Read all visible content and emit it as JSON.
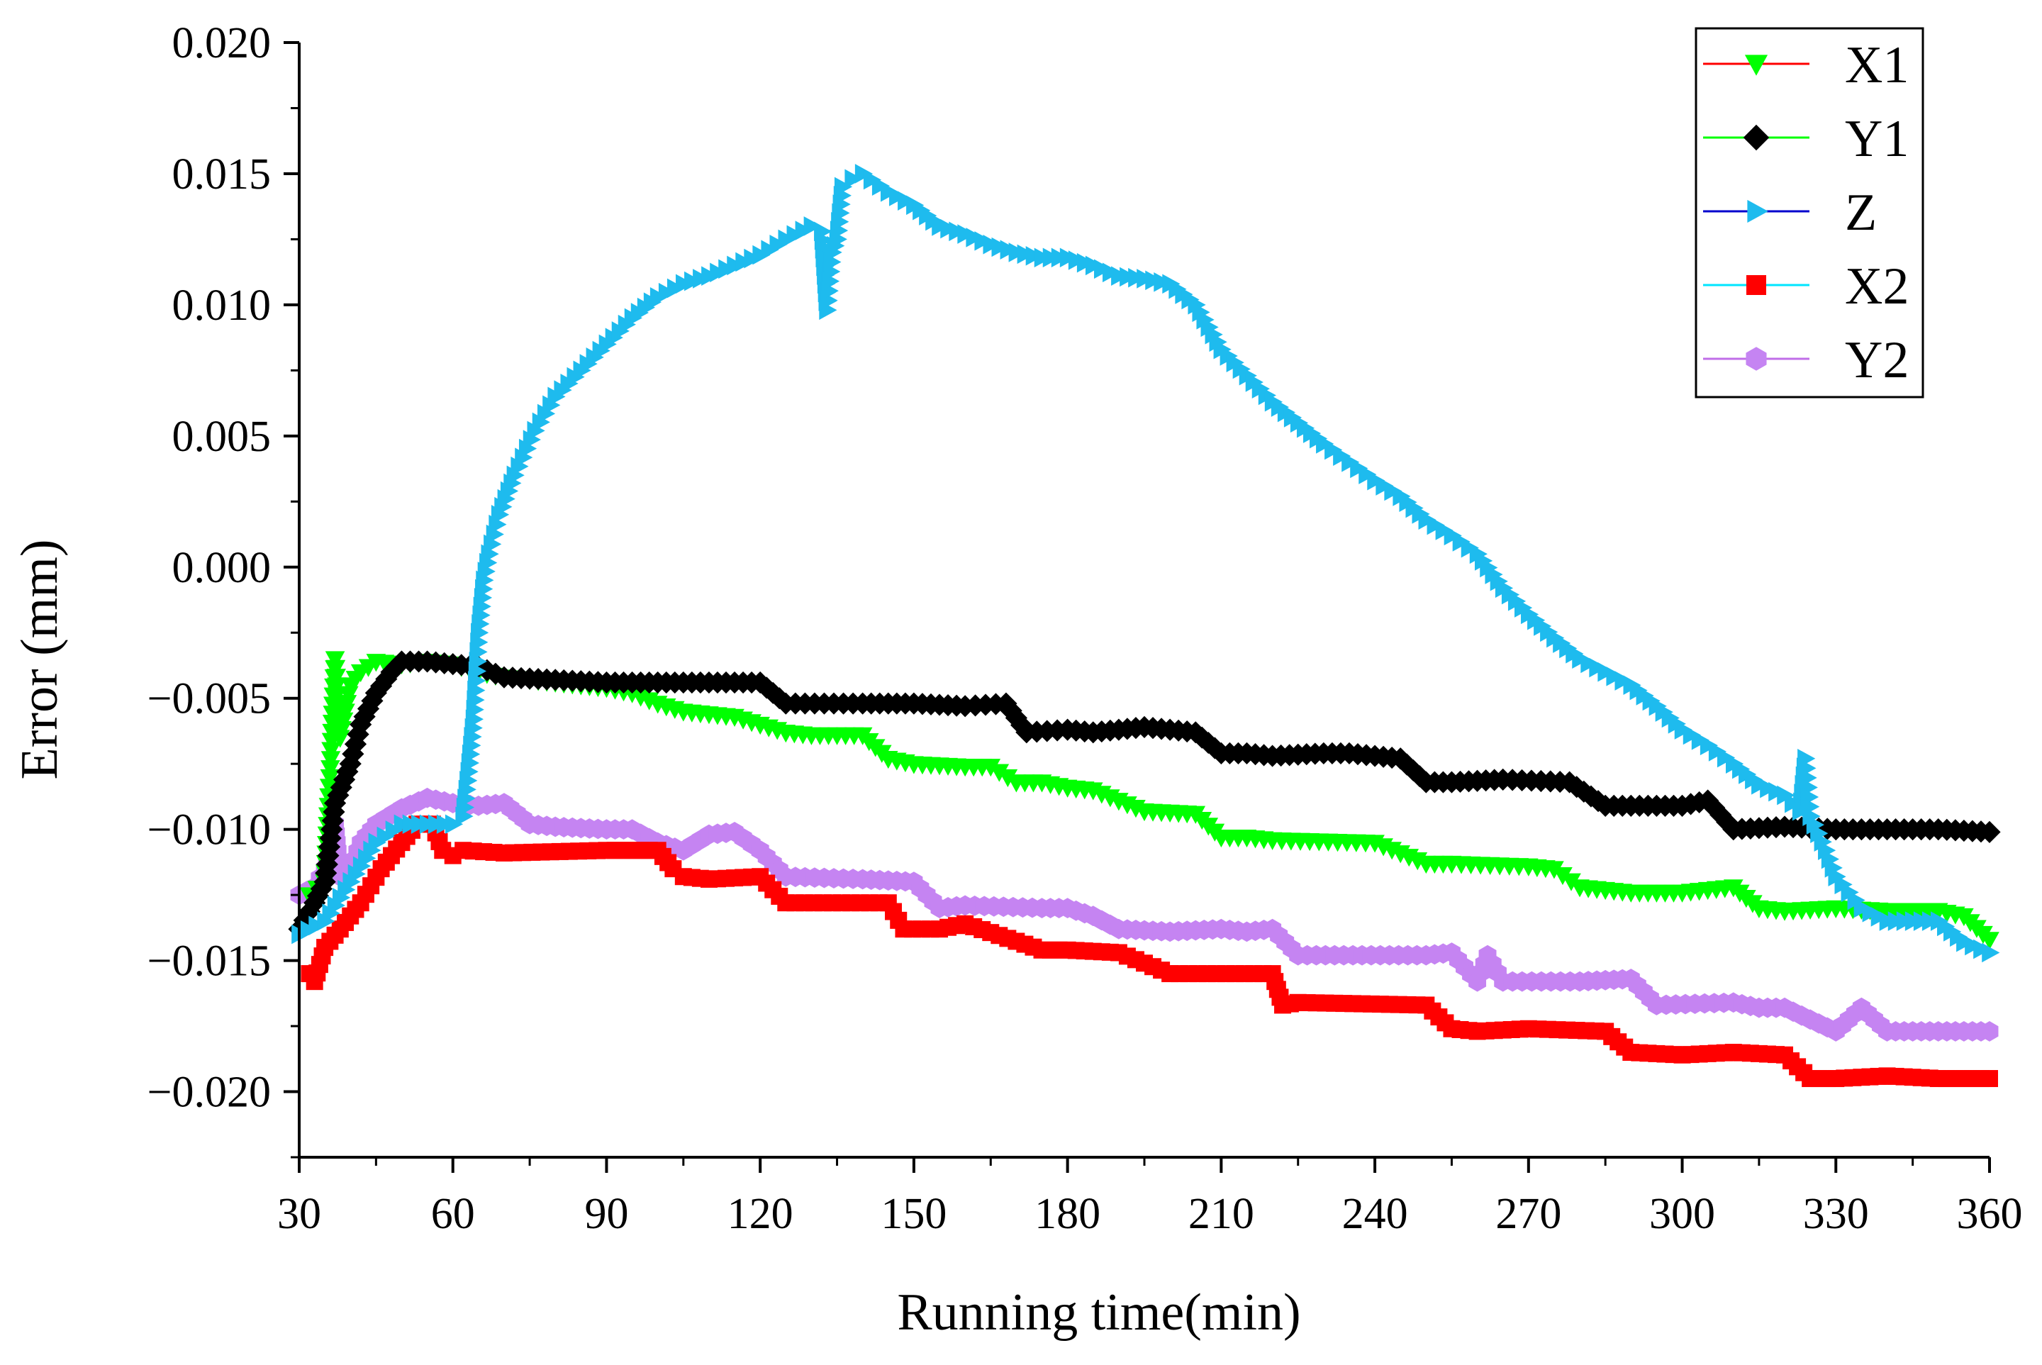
{
  "chart_data": {
    "type": "line",
    "title": "",
    "xlabel": "Running time(min)",
    "ylabel": "Error (mm)",
    "xlim": [
      30,
      360
    ],
    "ylim": [
      -0.0225,
      0.02
    ],
    "xticks": [
      30,
      60,
      90,
      120,
      150,
      180,
      210,
      240,
      270,
      300,
      330,
      360
    ],
    "xtick_labels": [
      "30",
      "60",
      "90",
      "120",
      "150",
      "180",
      "210",
      "240",
      "270",
      "300",
      "330",
      "360"
    ],
    "yticks": [
      -0.02,
      -0.015,
      -0.01,
      -0.005,
      0,
      0.005,
      0.01,
      0.015,
      0.02
    ],
    "ytick_labels": [
      "−0.020",
      "−0.015",
      "−0.010",
      "−0.005",
      "0.000",
      "0.005",
      "0.010",
      "0.015",
      "0.020"
    ],
    "legend_position": "top-right",
    "grid": false,
    "series": [
      {
        "name": "X1",
        "line_color": "#ff0000",
        "marker_color": "#00ff00",
        "marker": "triangle-down",
        "x": [
          32,
          35,
          36,
          37,
          38,
          40,
          42,
          45,
          50,
          55,
          60,
          65,
          70,
          75,
          80,
          90,
          95,
          100,
          105,
          110,
          115,
          120,
          125,
          130,
          140,
          145,
          150,
          160,
          165,
          170,
          175,
          180,
          185,
          195,
          205,
          210,
          215,
          220,
          240,
          250,
          255,
          270,
          275,
          280,
          290,
          300,
          310,
          315,
          320,
          330,
          340,
          350,
          355,
          360
        ],
        "values": [
          -0.0125,
          -0.012,
          -0.008,
          -0.0035,
          -0.0065,
          -0.0045,
          -0.004,
          -0.0036,
          -0.0037,
          -0.0036,
          -0.0037,
          -0.004,
          -0.0042,
          -0.0043,
          -0.0044,
          -0.0046,
          -0.0048,
          -0.0052,
          -0.0055,
          -0.0056,
          -0.0057,
          -0.006,
          -0.0063,
          -0.0064,
          -0.0064,
          -0.0073,
          -0.0075,
          -0.0076,
          -0.0076,
          -0.0082,
          -0.0082,
          -0.0084,
          -0.0085,
          -0.0093,
          -0.0094,
          -0.0103,
          -0.0103,
          -0.0104,
          -0.0105,
          -0.0113,
          -0.0113,
          -0.0114,
          -0.0115,
          -0.0122,
          -0.0124,
          -0.0124,
          -0.0122,
          -0.013,
          -0.0131,
          -0.013,
          -0.0131,
          -0.0131,
          -0.0133,
          -0.0142
        ]
      },
      {
        "name": "Y1",
        "line_color": "#00ff00",
        "marker_color": "#000000",
        "marker": "diamond",
        "x": [
          30,
          33,
          35,
          37,
          40,
          42,
          45,
          48,
          50,
          55,
          60,
          65,
          70,
          80,
          90,
          100,
          110,
          120,
          125,
          140,
          150,
          160,
          168,
          172,
          180,
          185,
          195,
          205,
          210,
          215,
          220,
          230,
          235,
          245,
          250,
          255,
          265,
          278,
          285,
          295,
          300,
          305,
          310,
          320,
          330,
          340,
          350,
          360
        ],
        "values": [
          -0.0138,
          -0.0128,
          -0.012,
          -0.009,
          -0.0075,
          -0.006,
          -0.0048,
          -0.004,
          -0.0036,
          -0.0036,
          -0.0037,
          -0.0038,
          -0.0042,
          -0.0043,
          -0.0044,
          -0.0044,
          -0.0044,
          -0.0044,
          -0.0052,
          -0.0052,
          -0.0052,
          -0.0053,
          -0.0052,
          -0.0063,
          -0.0062,
          -0.0063,
          -0.0061,
          -0.0063,
          -0.0071,
          -0.0071,
          -0.0072,
          -0.0071,
          -0.0071,
          -0.0073,
          -0.0082,
          -0.0082,
          -0.0081,
          -0.0082,
          -0.0091,
          -0.0091,
          -0.0091,
          -0.0089,
          -0.01,
          -0.0099,
          -0.01,
          -0.01,
          -0.01,
          -0.0101
        ]
      },
      {
        "name": "Z",
        "line_color": "#0000cd",
        "marker_color": "#1ebbee",
        "marker": "triangle-right",
        "x": [
          30,
          35,
          40,
          45,
          50,
          55,
          60,
          62,
          63,
          64,
          65,
          66,
          67,
          69,
          72,
          76,
          80,
          85,
          90,
          95,
          100,
          105,
          110,
          115,
          120,
          125,
          130,
          132,
          133,
          134,
          135,
          136,
          138,
          140,
          145,
          150,
          155,
          160,
          165,
          170,
          175,
          180,
          185,
          190,
          195,
          200,
          205,
          210,
          215,
          220,
          225,
          230,
          235,
          240,
          245,
          250,
          255,
          260,
          265,
          270,
          275,
          280,
          285,
          290,
          295,
          300,
          305,
          310,
          315,
          320,
          323,
          324,
          325,
          328,
          330,
          335,
          340,
          345,
          350,
          355,
          360
        ],
        "values": [
          -0.014,
          -0.0135,
          -0.012,
          -0.0105,
          -0.0098,
          -0.0098,
          -0.0098,
          -0.0095,
          -0.0078,
          -0.0058,
          -0.0025,
          -0.0005,
          0.0005,
          0.002,
          0.0035,
          0.0052,
          0.0065,
          0.0075,
          0.0085,
          0.0095,
          0.0103,
          0.0108,
          0.0111,
          0.0115,
          0.0119,
          0.0125,
          0.013,
          0.0128,
          0.0098,
          0.012,
          0.0125,
          0.0145,
          0.0148,
          0.015,
          0.0143,
          0.0138,
          0.013,
          0.0127,
          0.0123,
          0.012,
          0.0118,
          0.0118,
          0.0115,
          0.0111,
          0.011,
          0.0108,
          0.01,
          0.0083,
          0.0073,
          0.0063,
          0.0055,
          0.0047,
          0.004,
          0.0033,
          0.0027,
          0.0018,
          0.0012,
          0.0005,
          -0.0008,
          -0.0018,
          -0.0027,
          -0.0035,
          -0.004,
          -0.0045,
          -0.0053,
          -0.0062,
          -0.0068,
          -0.0075,
          -0.0083,
          -0.0087,
          -0.0093,
          -0.0073,
          -0.0095,
          -0.0108,
          -0.0118,
          -0.013,
          -0.0135,
          -0.0135,
          -0.0135,
          -0.0143,
          -0.0147
        ]
      },
      {
        "name": "X2",
        "line_color": "#00e5ff",
        "marker_color": "#ff0000",
        "marker": "square",
        "x": [
          32,
          33,
          35,
          38,
          42,
          46,
          50,
          53,
          56,
          58,
          60,
          62,
          70,
          90,
          100,
          103,
          105,
          110,
          120,
          125,
          145,
          148,
          155,
          160,
          175,
          180,
          190,
          200,
          220,
          222,
          225,
          250,
          255,
          260,
          270,
          285,
          290,
          300,
          310,
          320,
          325,
          330,
          340,
          350,
          360
        ],
        "values": [
          -0.0155,
          -0.0158,
          -0.0145,
          -0.0138,
          -0.0128,
          -0.0115,
          -0.0105,
          -0.0098,
          -0.0098,
          -0.0108,
          -0.011,
          -0.0108,
          -0.0109,
          -0.0108,
          -0.0108,
          -0.0115,
          -0.0118,
          -0.0119,
          -0.0118,
          -0.0128,
          -0.0128,
          -0.0138,
          -0.0138,
          -0.0136,
          -0.0146,
          -0.0146,
          -0.0147,
          -0.0155,
          -0.0155,
          -0.0167,
          -0.0166,
          -0.0167,
          -0.0176,
          -0.0177,
          -0.0176,
          -0.0177,
          -0.0185,
          -0.0186,
          -0.0185,
          -0.0186,
          -0.0195,
          -0.0195,
          -0.0194,
          -0.0195,
          -0.0195
        ]
      },
      {
        "name": "Y2",
        "line_color": "#c06ee8",
        "marker_color": "#c584f2",
        "marker": "hexagon",
        "x": [
          30,
          33,
          35,
          37,
          38,
          40,
          42,
          45,
          50,
          55,
          60,
          65,
          70,
          75,
          80,
          90,
          95,
          100,
          105,
          110,
          115,
          120,
          125,
          140,
          150,
          155,
          160,
          175,
          180,
          185,
          190,
          200,
          210,
          215,
          220,
          225,
          250,
          255,
          260,
          262,
          265,
          280,
          290,
          295,
          310,
          315,
          320,
          330,
          335,
          340,
          350,
          360
        ],
        "values": [
          -0.0125,
          -0.0122,
          -0.0115,
          -0.0098,
          -0.0118,
          -0.0115,
          -0.0105,
          -0.0098,
          -0.0092,
          -0.0088,
          -0.009,
          -0.0091,
          -0.009,
          -0.0098,
          -0.0099,
          -0.01,
          -0.01,
          -0.0105,
          -0.0108,
          -0.0102,
          -0.0101,
          -0.0108,
          -0.0118,
          -0.0119,
          -0.012,
          -0.013,
          -0.0129,
          -0.013,
          -0.013,
          -0.0133,
          -0.0138,
          -0.0139,
          -0.0138,
          -0.0139,
          -0.0138,
          -0.0148,
          -0.0148,
          -0.0147,
          -0.0158,
          -0.0148,
          -0.0158,
          -0.0158,
          -0.0157,
          -0.0167,
          -0.0166,
          -0.0168,
          -0.0168,
          -0.0177,
          -0.0168,
          -0.0177,
          -0.0177,
          -0.0177
        ]
      }
    ]
  }
}
